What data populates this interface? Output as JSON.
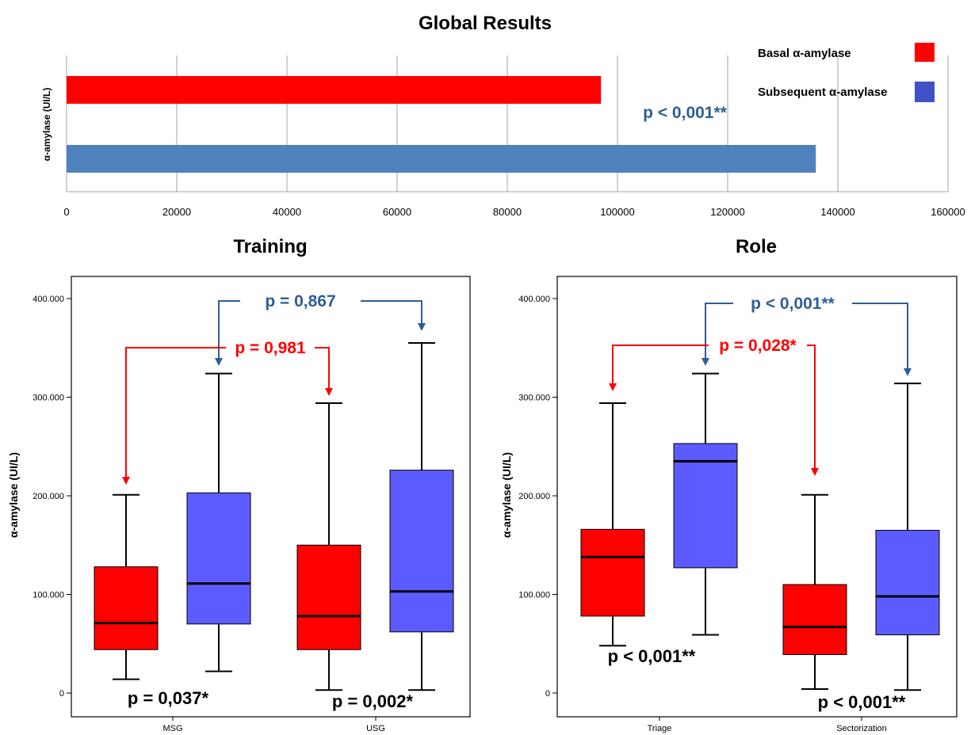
{
  "colors": {
    "basal": "#ff0000",
    "subsequent": "#5b5bff",
    "global_subsequent": "#4f81bd",
    "legend_subsequent": "#3f51c5",
    "p_blue": "#2e5e96",
    "p_red": "#ff0000"
  },
  "legend": {
    "basal": "Basal α-amylase",
    "subsequent": "Subsequent α-amylase"
  },
  "chart_data": [
    {
      "id": "global",
      "type": "bar",
      "orientation": "horizontal",
      "title": "Global Results",
      "ylabel": "α-amylase (UI/L)",
      "xlim": [
        0,
        160000
      ],
      "xticks": [
        "0",
        "20000",
        "40000",
        "60000",
        "80000",
        "100000",
        "120000",
        "140000",
        "160000"
      ],
      "grid": true,
      "legend_position": "top-right",
      "series": [
        {
          "name": "Basal α-amylase",
          "value": 97000
        },
        {
          "name": "Subsequent α-amylase",
          "value": 136000
        }
      ],
      "annotation": "p < 0,001**"
    },
    {
      "id": "training",
      "type": "boxplot",
      "title": "Training",
      "ylabel": "α-amylase (UI/L)",
      "ylim": [
        0,
        400000
      ],
      "yticks": [
        "0",
        "100.000",
        "200.000",
        "300.000",
        "400.000"
      ],
      "categories": [
        "MSG",
        "USG"
      ],
      "boxes": [
        {
          "category": "MSG",
          "series": "Basal α-amylase",
          "min": 14000,
          "q1": 44000,
          "median": 71000,
          "q3": 128000,
          "max": 201000
        },
        {
          "category": "MSG",
          "series": "Subsequent α-amylase",
          "min": 22000,
          "q1": 70000,
          "median": 111000,
          "q3": 203000,
          "max": 324000
        },
        {
          "category": "USG",
          "series": "Basal α-amylase",
          "min": 3000,
          "q1": 44000,
          "median": 78000,
          "q3": 150000,
          "max": 294000
        },
        {
          "category": "USG",
          "series": "Subsequent α-amylase",
          "min": 3000,
          "q1": 62000,
          "median": 103000,
          "q3": 226000,
          "max": 355000
        }
      ],
      "comparisons": {
        "blue": "p = 0,867",
        "red": "p = 0,981",
        "left": "p = 0,037*",
        "right": "p = 0,002*"
      }
    },
    {
      "id": "role",
      "type": "boxplot",
      "title": "Role",
      "ylabel": "α-amylase (UI/L)",
      "ylim": [
        0,
        400000
      ],
      "yticks": [
        "0",
        "100.000",
        "200.000",
        "300.000",
        "400.000"
      ],
      "categories": [
        "Triage",
        "Sectorization"
      ],
      "boxes": [
        {
          "category": "Triage",
          "series": "Basal α-amylase",
          "min": 48000,
          "q1": 78000,
          "median": 138000,
          "q3": 166000,
          "max": 294000
        },
        {
          "category": "Triage",
          "series": "Subsequent α-amylase",
          "min": 59000,
          "q1": 127000,
          "median": 235000,
          "q3": 253000,
          "max": 324000
        },
        {
          "category": "Sectorization",
          "series": "Basal α-amylase",
          "min": 4000,
          "q1": 39000,
          "median": 67000,
          "q3": 110000,
          "max": 201000
        },
        {
          "category": "Sectorization",
          "series": "Subsequent α-amylase",
          "min": 3000,
          "q1": 59000,
          "median": 98000,
          "q3": 165000,
          "max": 314000
        }
      ],
      "comparisons": {
        "blue": "p < 0,001**",
        "red": "p = 0,028*",
        "left": "p < 0,001**",
        "right": "p < 0,001**"
      }
    }
  ]
}
